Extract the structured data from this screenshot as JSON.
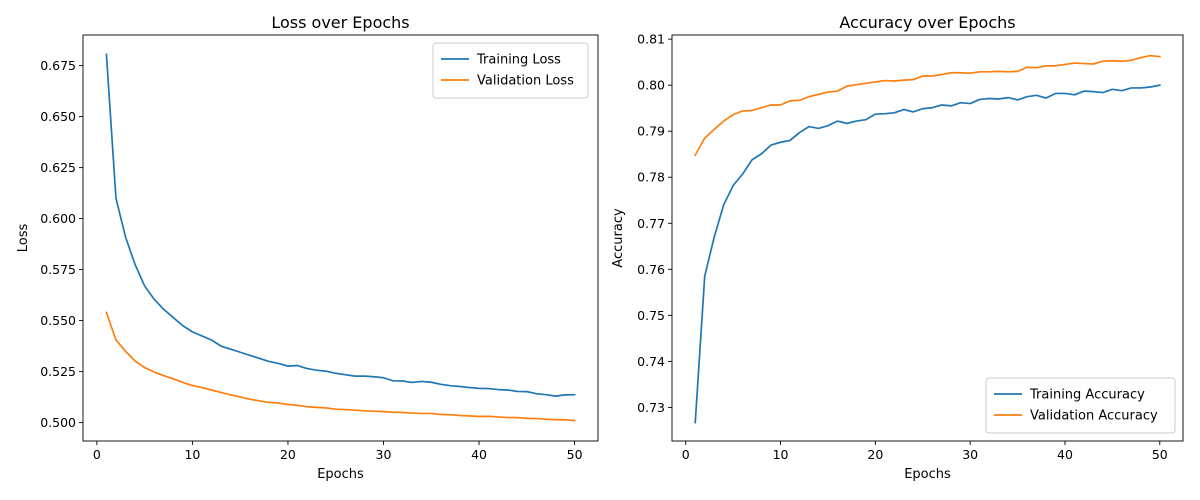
{
  "chart_data": [
    {
      "type": "line",
      "title": "Loss over Epochs",
      "xlabel": "Epochs",
      "ylabel": "Loss",
      "xlim": [
        -1.45,
        52.45
      ],
      "ylim": [
        0.491,
        0.69
      ],
      "xticks": [
        0,
        10,
        20,
        30,
        40,
        50
      ],
      "yticks": [
        0.5,
        0.525,
        0.55,
        0.575,
        0.6,
        0.625,
        0.65,
        0.675
      ],
      "ytick_labels": [
        "0.500",
        "0.525",
        "0.550",
        "0.575",
        "0.600",
        "0.625",
        "0.650",
        "0.675"
      ],
      "legend_position": "top-right",
      "grid": false,
      "x": [
        1,
        2,
        3,
        4,
        5,
        6,
        7,
        8,
        9,
        10,
        11,
        12,
        13,
        14,
        15,
        16,
        17,
        18,
        19,
        20,
        21,
        22,
        23,
        24,
        25,
        26,
        27,
        28,
        29,
        30,
        31,
        32,
        33,
        34,
        35,
        36,
        37,
        38,
        39,
        40,
        41,
        42,
        43,
        44,
        45,
        46,
        47,
        48,
        49,
        50
      ],
      "series": [
        {
          "name": "Training Loss",
          "color": "#1f77b4",
          "values": [
            0.6805,
            0.61,
            0.591,
            0.5775,
            0.567,
            0.5605,
            0.5555,
            0.5515,
            0.5475,
            0.5445,
            0.5425,
            0.5405,
            0.5375,
            0.536,
            0.5345,
            0.533,
            0.5315,
            0.53,
            0.529,
            0.5277,
            0.528,
            0.5265,
            0.5257,
            0.5252,
            0.5242,
            0.5235,
            0.5228,
            0.5228,
            0.5225,
            0.522,
            0.5205,
            0.5204,
            0.5197,
            0.5202,
            0.5198,
            0.5188,
            0.5181,
            0.5177,
            0.5172,
            0.5168,
            0.5167,
            0.5162,
            0.516,
            0.5153,
            0.5152,
            0.5142,
            0.5137,
            0.513,
            0.5136,
            0.5137
          ]
        },
        {
          "name": "Validation Loss",
          "color": "#ff7f0e",
          "values": [
            0.554,
            0.5405,
            0.535,
            0.5302,
            0.527,
            0.5248,
            0.523,
            0.5215,
            0.5197,
            0.5182,
            0.5172,
            0.516,
            0.5148,
            0.5136,
            0.5126,
            0.5115,
            0.5107,
            0.5099,
            0.5096,
            0.5089,
            0.5085,
            0.5078,
            0.5075,
            0.5072,
            0.5066,
            0.5064,
            0.5061,
            0.5058,
            0.5056,
            0.5054,
            0.5051,
            0.505,
            0.5047,
            0.5045,
            0.5045,
            0.504,
            0.5039,
            0.5035,
            0.5033,
            0.503,
            0.5031,
            0.5028,
            0.5025,
            0.5025,
            0.5021,
            0.502,
            0.5017,
            0.5014,
            0.5014,
            0.501
          ]
        }
      ]
    },
    {
      "type": "line",
      "title": "Accuracy over Epochs",
      "xlabel": "Epochs",
      "ylabel": "Accuracy",
      "xlim": [
        -1.45,
        52.45
      ],
      "ylim": [
        0.7227,
        0.8109
      ],
      "xticks": [
        0,
        10,
        20,
        30,
        40,
        50
      ],
      "yticks": [
        0.73,
        0.74,
        0.75,
        0.76,
        0.77,
        0.78,
        0.79,
        0.8,
        0.81
      ],
      "ytick_labels": [
        "0.73",
        "0.74",
        "0.75",
        "0.76",
        "0.77",
        "0.78",
        "0.79",
        "0.80",
        "0.81"
      ],
      "legend_position": "lower-right",
      "grid": false,
      "x": [
        1,
        2,
        3,
        4,
        5,
        6,
        7,
        8,
        9,
        10,
        11,
        12,
        13,
        14,
        15,
        16,
        17,
        18,
        19,
        20,
        21,
        22,
        23,
        24,
        25,
        26,
        27,
        28,
        29,
        30,
        31,
        32,
        33,
        34,
        35,
        36,
        37,
        38,
        39,
        40,
        41,
        42,
        43,
        44,
        45,
        46,
        47,
        48,
        49,
        50
      ],
      "series": [
        {
          "name": "Training Accuracy",
          "color": "#1f77b4",
          "values": [
            0.7267,
            0.7585,
            0.767,
            0.774,
            0.7782,
            0.7807,
            0.7838,
            0.7851,
            0.787,
            0.7876,
            0.788,
            0.7897,
            0.791,
            0.7906,
            0.7912,
            0.7922,
            0.7917,
            0.7922,
            0.7925,
            0.7937,
            0.7938,
            0.794,
            0.7947,
            0.7942,
            0.7949,
            0.7951,
            0.7957,
            0.7955,
            0.7962,
            0.796,
            0.7969,
            0.7971,
            0.797,
            0.7973,
            0.7968,
            0.7975,
            0.7978,
            0.7972,
            0.7982,
            0.7982,
            0.7979,
            0.7987,
            0.7986,
            0.7984,
            0.7991,
            0.7988,
            0.7994,
            0.7994,
            0.7996,
            0.8
          ]
        },
        {
          "name": "Validation Accuracy",
          "color": "#ff7f0e",
          "values": [
            0.7848,
            0.7885,
            0.7904,
            0.7922,
            0.7936,
            0.7944,
            0.7945,
            0.7951,
            0.7957,
            0.7957,
            0.7966,
            0.7967,
            0.7975,
            0.798,
            0.7985,
            0.7987,
            0.7998,
            0.8001,
            0.8004,
            0.8007,
            0.801,
            0.8009,
            0.8011,
            0.8012,
            0.802,
            0.802,
            0.8023,
            0.8027,
            0.8027,
            0.8026,
            0.8029,
            0.8029,
            0.803,
            0.8029,
            0.803,
            0.8039,
            0.8038,
            0.8042,
            0.8042,
            0.8045,
            0.8048,
            0.8047,
            0.8046,
            0.8052,
            0.8053,
            0.8052,
            0.8054,
            0.806,
            0.8064,
            0.8062
          ]
        }
      ]
    }
  ]
}
